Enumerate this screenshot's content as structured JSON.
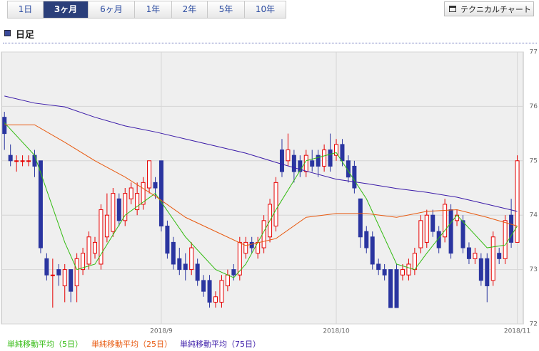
{
  "tabs": [
    "1日",
    "3ヶ月",
    "6ヶ月",
    "1年",
    "2年",
    "5年",
    "10年"
  ],
  "button": "テクニカルチャート",
  "section_title": "日足",
  "chart_data": {
    "type": "candlestick",
    "xlim": [
      -0.5,
      86
    ],
    "ylim": [
      72,
      77
    ],
    "yticks": [
      72,
      73,
      74,
      75,
      76,
      77
    ],
    "xticks": [
      {
        "value": 26,
        "label": "2018/9"
      },
      {
        "value": 55,
        "label": "2018/10"
      },
      {
        "value": 85,
        "label": "2018/11"
      }
    ],
    "grid": true,
    "up_color": "#e60000",
    "down_color": "#2a35a0",
    "candles": {
      "open": [
        75.8,
        75.1,
        75.0,
        75.0,
        75.0,
        75.1,
        75.0,
        73.2,
        72.9,
        73.0,
        72.7,
        73.0,
        72.7,
        73.0,
        73.1,
        73.3,
        73.1,
        73.6,
        73.7,
        74.3,
        73.9,
        74.3,
        74.1,
        74.2,
        74.5,
        74.6,
        75.0,
        73.8,
        73.5,
        73.2,
        73.1,
        73.0,
        73.1,
        72.8,
        72.8,
        72.4,
        72.4,
        72.7,
        73.0,
        72.9,
        73.3,
        73.5,
        73.3,
        73.4,
        73.6,
        73.8,
        75.2,
        75.0,
        75.1,
        75.0,
        74.8,
        75.0,
        75.1,
        74.9,
        75.2,
        75.1,
        75.3,
        75.0,
        74.9,
        74.3,
        73.7,
        73.6,
        73.1,
        73.0,
        73.0,
        73.0,
        72.9,
        72.9,
        73.0,
        73.4,
        73.5,
        74.0,
        73.7,
        73.6,
        74.1,
        73.9,
        73.9,
        73.4,
        73.2,
        73.2,
        73.2,
        72.8,
        73.3,
        73.2,
        74.0,
        73.5
      ],
      "high": [
        75.9,
        75.3,
        75.1,
        75.1,
        75.1,
        75.2,
        75.0,
        73.3,
        73.2,
        73.1,
        73.1,
        73.0,
        73.3,
        73.4,
        73.7,
        73.6,
        74.2,
        74.4,
        74.5,
        74.4,
        74.5,
        74.6,
        74.6,
        74.7,
        75.0,
        74.7,
        75.0,
        73.9,
        73.6,
        73.4,
        73.3,
        73.5,
        73.2,
        72.9,
        72.9,
        72.6,
        72.9,
        73.0,
        73.1,
        73.6,
        73.6,
        73.6,
        73.6,
        74.0,
        74.3,
        74.7,
        75.4,
        75.5,
        75.2,
        75.1,
        75.2,
        75.2,
        75.2,
        75.3,
        75.5,
        75.4,
        75.4,
        75.1,
        75.0,
        74.3,
        73.8,
        73.7,
        73.2,
        73.1,
        73.0,
        73.1,
        73.1,
        73.2,
        73.4,
        74.0,
        74.1,
        74.1,
        73.8,
        74.3,
        74.2,
        74.1,
        74.0,
        73.5,
        73.4,
        73.3,
        73.3,
        73.7,
        73.4,
        74.0,
        74.3,
        75.1
      ],
      "low": [
        75.2,
        74.9,
        74.8,
        74.9,
        74.9,
        74.7,
        73.3,
        72.8,
        72.3,
        72.7,
        72.4,
        72.4,
        72.4,
        72.9,
        73.0,
        73.2,
        73.0,
        73.5,
        73.6,
        73.8,
        73.8,
        74.2,
        74.0,
        74.1,
        74.4,
        74.3,
        73.7,
        73.2,
        73.0,
        72.9,
        72.8,
        72.9,
        72.7,
        72.5,
        72.3,
        72.3,
        72.3,
        72.6,
        72.8,
        72.8,
        73.2,
        73.3,
        73.2,
        73.3,
        73.5,
        73.7,
        74.7,
        74.9,
        74.6,
        74.7,
        74.7,
        74.8,
        74.7,
        74.8,
        74.8,
        75.0,
        74.9,
        74.6,
        74.4,
        73.4,
        73.3,
        73.0,
        72.9,
        72.8,
        72.3,
        72.3,
        72.8,
        72.8,
        72.9,
        73.3,
        73.4,
        73.6,
        73.3,
        73.5,
        73.2,
        73.8,
        73.3,
        73.1,
        73.1,
        72.7,
        72.4,
        72.7,
        73.1,
        73.1,
        73.4,
        73.5
      ],
      "close": [
        75.5,
        75.0,
        75.0,
        75.0,
        75.0,
        74.9,
        73.4,
        72.9,
        72.9,
        72.9,
        73.0,
        72.6,
        73.2,
        73.3,
        73.6,
        73.5,
        74.1,
        74.0,
        74.4,
        73.9,
        74.4,
        74.5,
        74.4,
        74.6,
        75.0,
        74.5,
        73.8,
        73.3,
        73.1,
        73.0,
        73.0,
        73.4,
        72.8,
        72.6,
        72.4,
        72.5,
        72.8,
        72.9,
        72.9,
        73.5,
        73.5,
        73.4,
        73.5,
        73.9,
        74.2,
        74.6,
        74.8,
        75.2,
        74.8,
        74.8,
        75.1,
        74.9,
        74.9,
        75.2,
        74.9,
        75.3,
        75.0,
        74.7,
        74.5,
        73.6,
        73.4,
        73.1,
        73.0,
        72.9,
        72.3,
        72.3,
        73.0,
        73.1,
        73.3,
        73.9,
        74.0,
        73.7,
        73.4,
        74.2,
        73.3,
        74.0,
        73.4,
        73.2,
        73.3,
        72.8,
        72.7,
        73.6,
        73.2,
        73.9,
        73.5,
        75.0
      ]
    },
    "series": [
      {
        "name": "単純移動平均（5日）",
        "color": "#33bb11",
        "x": [
          0,
          5,
          10,
          12,
          15,
          20,
          25,
          30,
          35,
          38,
          40,
          45,
          50,
          55,
          60,
          65,
          68,
          70,
          75,
          80,
          83,
          85
        ],
        "values": [
          75.7,
          75.1,
          73.5,
          73.0,
          73.1,
          74.0,
          74.4,
          73.6,
          73.0,
          72.85,
          73.1,
          74.1,
          75.0,
          75.15,
          74.3,
          73.1,
          73.0,
          73.3,
          74.0,
          73.4,
          73.45,
          73.8
        ]
      },
      {
        "name": "単純移動平均（25日）",
        "color": "#e85a10",
        "x": [
          0,
          5,
          10,
          15,
          20,
          25,
          30,
          35,
          40,
          45,
          50,
          55,
          60,
          65,
          70,
          75,
          80,
          85
        ],
        "values": [
          75.66,
          75.66,
          75.34,
          75.0,
          74.7,
          74.35,
          73.96,
          73.7,
          73.44,
          73.57,
          73.96,
          74.03,
          74.03,
          73.96,
          74.07,
          74.1,
          73.96,
          73.8
        ]
      },
      {
        "name": "単純移動平均（75日）",
        "color": "#3a1aa8",
        "x": [
          0,
          5,
          10,
          15,
          20,
          25,
          30,
          35,
          40,
          45,
          50,
          55,
          60,
          65,
          70,
          75,
          80,
          85
        ],
        "values": [
          76.19,
          76.06,
          75.99,
          75.8,
          75.64,
          75.53,
          75.4,
          75.27,
          75.14,
          74.97,
          74.81,
          74.66,
          74.58,
          74.49,
          74.42,
          74.33,
          74.2,
          74.07
        ]
      }
    ]
  }
}
